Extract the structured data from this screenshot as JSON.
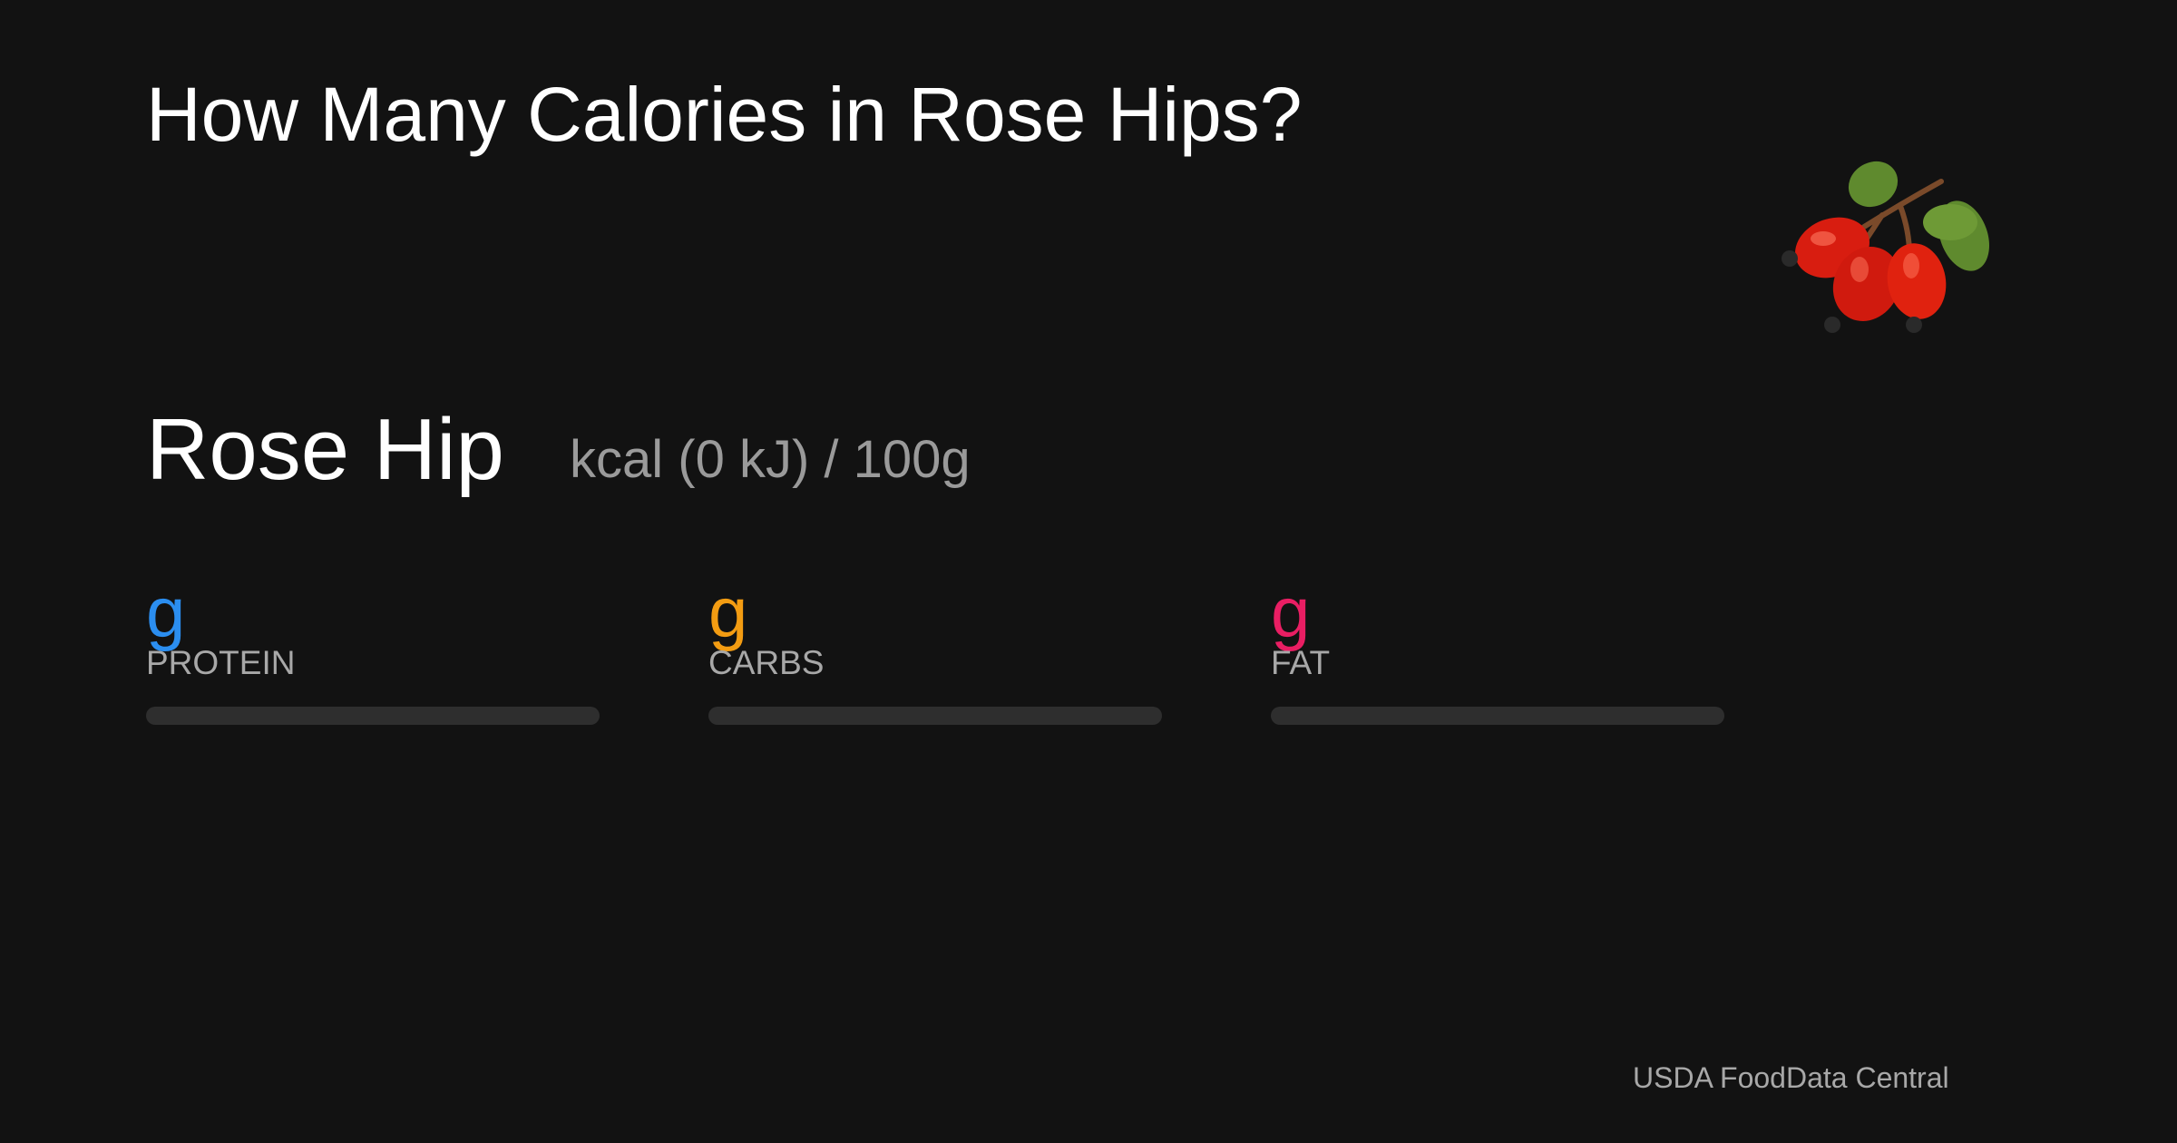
{
  "header": {
    "title": "How Many Calories in Rose Hips?"
  },
  "food": {
    "name": "Rose Hip",
    "energy": "kcal (0 kJ) / 100g"
  },
  "macros": [
    {
      "unit": "g",
      "label": "PROTEIN",
      "color": "#2b8ef0"
    },
    {
      "unit": "g",
      "label": "CARBS",
      "color": "#f39c12"
    },
    {
      "unit": "g",
      "label": "FAT",
      "color": "#e91e63"
    }
  ],
  "footer": {
    "source": "USDA FoodData Central"
  }
}
